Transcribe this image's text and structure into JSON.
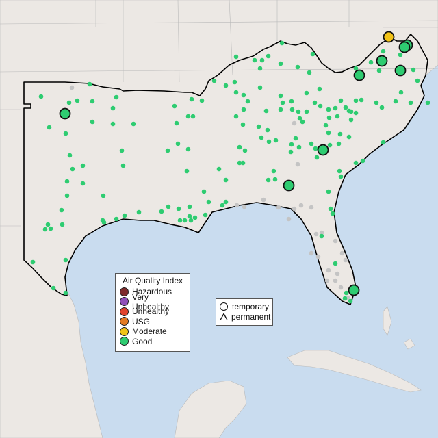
{
  "legend": {
    "title": "Air Quality Index",
    "categories": [
      {
        "label": "Hazardous",
        "color": "#7e2b2b"
      },
      {
        "label": "Very Unhealthy",
        "color": "#8e4fb8"
      },
      {
        "label": "Unhealthy",
        "color": "#e0432e"
      },
      {
        "label": "USG",
        "color": "#e37a22"
      },
      {
        "label": "Moderate",
        "color": "#f2c318"
      },
      {
        "label": "Good",
        "color": "#2ecc71"
      }
    ]
  },
  "monitor_types": {
    "temporary": "temporary",
    "permanent": "permanent"
  },
  "colors": {
    "ocean": "#c9dcef",
    "land": "#ece8e4",
    "region_outline": "#000000",
    "no_data_site": "#c4c4c4"
  },
  "highlighted_sites": [
    {
      "category": "Moderate"
    },
    {
      "category": "Good"
    },
    {
      "category": "Good"
    },
    {
      "category": "Good"
    },
    {
      "category": "Good"
    },
    {
      "category": "Good"
    },
    {
      "category": "Good"
    },
    {
      "category": "Good"
    },
    {
      "category": "Good"
    }
  ]
}
